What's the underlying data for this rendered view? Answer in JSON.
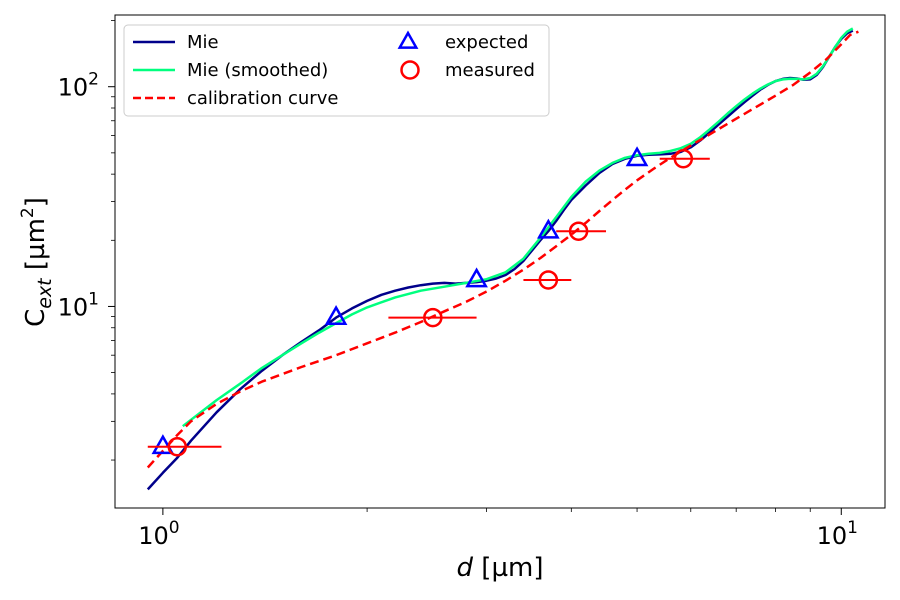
{
  "chart_data": {
    "type": "line",
    "xscale": "log",
    "yscale": "log",
    "xlim": [
      0.85,
      11.6
    ],
    "ylim": [
      1.21,
      212
    ],
    "xlabel_italic": "d",
    "xlabel_unit": " [µm]",
    "ylabel_main": "C",
    "ylabel_sub": "ext",
    "ylabel_unit_open": " [µm",
    "ylabel_unit_sup": "2",
    "ylabel_unit_close": "]",
    "x_tick_base": "10",
    "y_tick_base": "10",
    "x_ticks": [
      {
        "value": 1,
        "exponent": "0"
      },
      {
        "value": 10,
        "exponent": "1"
      }
    ],
    "y_ticks": [
      {
        "value": 10,
        "exponent": "1"
      },
      {
        "value": 100,
        "exponent": "2"
      }
    ],
    "x_minor_ticks": [
      2,
      3,
      4,
      5,
      6,
      7,
      8,
      9
    ],
    "y_minor_ticks": [
      2,
      3,
      4,
      5,
      6,
      7,
      8,
      9,
      20,
      30,
      40,
      50,
      60,
      70,
      80,
      90,
      200
    ],
    "series": [
      {
        "name": "Mie",
        "kind": "line",
        "color": "#00008b",
        "dash": "",
        "points": [
          [
            0.95,
            1.47
          ],
          [
            1.0,
            1.75
          ],
          [
            1.05,
            2.05
          ],
          [
            1.1,
            2.45
          ],
          [
            1.2,
            3.3
          ],
          [
            1.3,
            4.2
          ],
          [
            1.4,
            5.1
          ],
          [
            1.5,
            6.0
          ],
          [
            1.6,
            6.9
          ],
          [
            1.7,
            7.8
          ],
          [
            1.8,
            8.9
          ],
          [
            1.9,
            9.8
          ],
          [
            2.0,
            10.6
          ],
          [
            2.1,
            11.3
          ],
          [
            2.2,
            11.8
          ],
          [
            2.3,
            12.2
          ],
          [
            2.4,
            12.5
          ],
          [
            2.5,
            12.7
          ],
          [
            2.6,
            12.8
          ],
          [
            2.7,
            12.7
          ],
          [
            2.8,
            12.8
          ],
          [
            2.9,
            12.9
          ],
          [
            3.0,
            13.1
          ],
          [
            3.1,
            13.4
          ],
          [
            3.2,
            13.9
          ],
          [
            3.3,
            14.8
          ],
          [
            3.4,
            16.1
          ],
          [
            3.5,
            18.0
          ],
          [
            3.6,
            20.0
          ],
          [
            3.7,
            22.0
          ],
          [
            3.8,
            24.5
          ],
          [
            3.9,
            27.5
          ],
          [
            4.0,
            30.5
          ],
          [
            4.2,
            35.5
          ],
          [
            4.4,
            40.5
          ],
          [
            4.6,
            44.5
          ],
          [
            4.8,
            47.0
          ],
          [
            5.0,
            48.5
          ],
          [
            5.2,
            49.0
          ],
          [
            5.4,
            49.2
          ],
          [
            5.6,
            49.5
          ],
          [
            5.8,
            50.5
          ],
          [
            6.0,
            53.0
          ],
          [
            6.2,
            57.0
          ],
          [
            6.4,
            62.0
          ],
          [
            6.6,
            67.5
          ],
          [
            6.8,
            73.0
          ],
          [
            7.0,
            79.0
          ],
          [
            7.2,
            85.0
          ],
          [
            7.4,
            91.0
          ],
          [
            7.6,
            97.0
          ],
          [
            7.8,
            102.0
          ],
          [
            8.0,
            106.0
          ],
          [
            8.2,
            108.5
          ],
          [
            8.4,
            109.5
          ],
          [
            8.6,
            109.0
          ],
          [
            8.8,
            107.5
          ],
          [
            9.0,
            108.0
          ],
          [
            9.2,
            113.0
          ],
          [
            9.4,
            123.0
          ],
          [
            9.6,
            137.0
          ],
          [
            9.8,
            152.0
          ],
          [
            10.0,
            165.0
          ],
          [
            10.2,
            175.0
          ],
          [
            10.4,
            180.0
          ]
        ]
      },
      {
        "name": "Mie (smoothed)",
        "kind": "line",
        "color": "#00ff7f",
        "dash": "",
        "points": [
          [
            1.07,
            2.85
          ],
          [
            1.1,
            3.05
          ],
          [
            1.2,
            3.75
          ],
          [
            1.3,
            4.45
          ],
          [
            1.4,
            5.25
          ],
          [
            1.5,
            6.0
          ],
          [
            1.6,
            6.8
          ],
          [
            1.7,
            7.6
          ],
          [
            1.8,
            8.4
          ],
          [
            1.9,
            9.2
          ],
          [
            2.0,
            9.9
          ],
          [
            2.2,
            11.0
          ],
          [
            2.4,
            11.8
          ],
          [
            2.6,
            12.3
          ],
          [
            2.8,
            12.8
          ],
          [
            3.0,
            13.3
          ],
          [
            3.2,
            14.3
          ],
          [
            3.4,
            16.5
          ],
          [
            3.6,
            20.5
          ],
          [
            3.8,
            25.5
          ],
          [
            4.0,
            31.5
          ],
          [
            4.2,
            37.0
          ],
          [
            4.4,
            41.5
          ],
          [
            4.6,
            45.0
          ],
          [
            4.8,
            47.5
          ],
          [
            5.0,
            48.8
          ],
          [
            5.2,
            49.5
          ],
          [
            5.4,
            50.0
          ],
          [
            5.6,
            51.0
          ],
          [
            5.8,
            52.5
          ],
          [
            6.0,
            55.0
          ],
          [
            6.2,
            59.0
          ],
          [
            6.4,
            64.0
          ],
          [
            6.6,
            69.5
          ],
          [
            6.8,
            75.5
          ],
          [
            7.0,
            81.5
          ],
          [
            7.2,
            87.5
          ],
          [
            7.4,
            93.0
          ],
          [
            7.6,
            98.0
          ],
          [
            7.8,
            102.5
          ],
          [
            8.0,
            106.0
          ],
          [
            8.2,
            108.0
          ],
          [
            8.4,
            108.8
          ],
          [
            8.6,
            108.5
          ],
          [
            8.8,
            108.0
          ],
          [
            9.0,
            109.5
          ],
          [
            9.2,
            114.5
          ],
          [
            9.4,
            124.0
          ],
          [
            9.6,
            137.0
          ],
          [
            9.8,
            152.0
          ],
          [
            10.0,
            167.0
          ],
          [
            10.2,
            178.0
          ],
          [
            10.4,
            184.0
          ]
        ]
      },
      {
        "name": "calibration curve",
        "kind": "line",
        "color": "#ff0000",
        "dash": "9,5",
        "points": [
          [
            0.95,
            1.85
          ],
          [
            1.0,
            2.2
          ],
          [
            1.05,
            2.6
          ],
          [
            1.1,
            3.0
          ],
          [
            1.2,
            3.6
          ],
          [
            1.3,
            4.1
          ],
          [
            1.4,
            4.55
          ],
          [
            1.6,
            5.3
          ],
          [
            1.8,
            6.0
          ],
          [
            2.0,
            6.8
          ],
          [
            2.2,
            7.6
          ],
          [
            2.4,
            8.5
          ],
          [
            2.6,
            9.5
          ],
          [
            2.8,
            10.5
          ],
          [
            3.0,
            11.7
          ],
          [
            3.2,
            13.1
          ],
          [
            3.4,
            14.7
          ],
          [
            3.6,
            16.6
          ],
          [
            3.8,
            18.8
          ],
          [
            4.0,
            21.2
          ],
          [
            4.2,
            24.0
          ],
          [
            4.4,
            27.2
          ],
          [
            4.6,
            30.5
          ],
          [
            4.8,
            34.0
          ],
          [
            5.0,
            37.5
          ],
          [
            5.3,
            42.5
          ],
          [
            5.6,
            47.5
          ],
          [
            6.0,
            54.0
          ],
          [
            6.5,
            62.5
          ],
          [
            7.0,
            71.5
          ],
          [
            7.5,
            81.0
          ],
          [
            8.0,
            91.0
          ],
          [
            8.5,
            102.0
          ],
          [
            9.0,
            116.0
          ],
          [
            9.5,
            133.0
          ],
          [
            10.0,
            156.0
          ],
          [
            10.3,
            172.0
          ],
          [
            10.6,
            178.0
          ]
        ]
      },
      {
        "name": "expected",
        "kind": "marker",
        "marker": "triangle",
        "color": "#0000ff",
        "points": [
          [
            1.0,
            2.3
          ],
          [
            1.8,
            8.9
          ],
          [
            2.9,
            13.2
          ],
          [
            3.7,
            22.0
          ],
          [
            5.0,
            47.0
          ]
        ]
      },
      {
        "name": "measured",
        "kind": "marker",
        "marker": "circle",
        "color": "#ff0000",
        "points": [
          [
            1.05,
            2.3
          ],
          [
            2.5,
            8.9
          ],
          [
            3.7,
            13.2
          ],
          [
            4.1,
            22.0
          ],
          [
            5.85,
            47.0
          ]
        ],
        "xerr": [
          [
            0.95,
            1.22
          ],
          [
            2.15,
            2.9
          ],
          [
            3.4,
            4.0
          ],
          [
            3.8,
            4.5
          ],
          [
            5.4,
            6.4
          ]
        ]
      }
    ],
    "legend": {
      "position": "top-left",
      "columns": [
        [
          "Mie",
          "Mie (smoothed)",
          "calibration curve"
        ],
        [
          "expected",
          "measured"
        ]
      ]
    }
  }
}
